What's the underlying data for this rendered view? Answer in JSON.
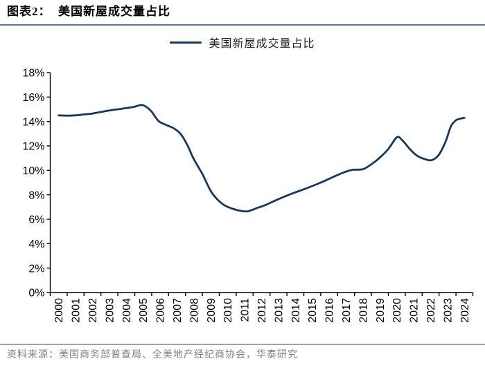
{
  "header": {
    "title": "图表2：  美国新屋成交量占比"
  },
  "legend": {
    "label": "美国新屋成交量占比"
  },
  "footer": {
    "source": "资料来源：美国商务部普查局、全美地产经纪商协会，华泰研究"
  },
  "colors": {
    "line": "#17375d",
    "axis": "#000000",
    "tick_label": "#000000",
    "title_underline": "#56799f",
    "footer_divider": "#8fa5bd",
    "footer_text": "#7f7f7f",
    "legend_text": "#262220",
    "background": "#ffffff"
  },
  "chart_data": {
    "type": "line",
    "title": "美国新屋成交量占比",
    "xlabel": "",
    "ylabel": "",
    "ylim": [
      0,
      18
    ],
    "y_ticks": [
      0,
      2,
      4,
      6,
      8,
      10,
      12,
      14,
      16,
      18
    ],
    "y_tick_labels": [
      "0%",
      "2%",
      "4%",
      "6%",
      "8%",
      "10%",
      "12%",
      "14%",
      "16%",
      "18%"
    ],
    "x_categories": [
      "2000",
      "2001",
      "2002",
      "2003",
      "2004",
      "2005",
      "2006",
      "2007",
      "2008",
      "2009",
      "2010",
      "2011",
      "2012",
      "2013",
      "2014",
      "2015",
      "2016",
      "2017",
      "2018",
      "2019",
      "2020",
      "2021",
      "2022",
      "2023",
      "2024"
    ],
    "grid": false,
    "legend_position": "top-center",
    "series": [
      {
        "name": "美国新屋成交量占比",
        "points": [
          [
            2000.0,
            14.5
          ],
          [
            2000.5,
            14.48
          ],
          [
            2001.0,
            14.5
          ],
          [
            2001.5,
            14.58
          ],
          [
            2002.0,
            14.65
          ],
          [
            2002.5,
            14.78
          ],
          [
            2003.0,
            14.9
          ],
          [
            2003.5,
            15.0
          ],
          [
            2004.0,
            15.1
          ],
          [
            2004.4,
            15.18
          ],
          [
            2004.9,
            15.35
          ],
          [
            2005.2,
            15.18
          ],
          [
            2005.5,
            14.8
          ],
          [
            2005.9,
            14.05
          ],
          [
            2006.3,
            13.75
          ],
          [
            2006.8,
            13.45
          ],
          [
            2007.2,
            13.0
          ],
          [
            2007.6,
            12.1
          ],
          [
            2008.0,
            10.9
          ],
          [
            2008.5,
            9.7
          ],
          [
            2009.0,
            8.3
          ],
          [
            2009.4,
            7.6
          ],
          [
            2009.8,
            7.15
          ],
          [
            2010.3,
            6.85
          ],
          [
            2010.8,
            6.68
          ],
          [
            2011.2,
            6.65
          ],
          [
            2011.7,
            6.9
          ],
          [
            2012.2,
            7.15
          ],
          [
            2013.0,
            7.65
          ],
          [
            2013.8,
            8.1
          ],
          [
            2014.6,
            8.5
          ],
          [
            2015.5,
            9.0
          ],
          [
            2016.3,
            9.5
          ],
          [
            2017.0,
            9.9
          ],
          [
            2017.4,
            10.05
          ],
          [
            2018.0,
            10.1
          ],
          [
            2018.5,
            10.5
          ],
          [
            2019.0,
            11.05
          ],
          [
            2019.5,
            11.75
          ],
          [
            2020.0,
            12.7
          ],
          [
            2020.3,
            12.5
          ],
          [
            2020.8,
            11.7
          ],
          [
            2021.2,
            11.2
          ],
          [
            2021.7,
            10.9
          ],
          [
            2022.1,
            10.85
          ],
          [
            2022.5,
            11.3
          ],
          [
            2022.9,
            12.4
          ],
          [
            2023.2,
            13.6
          ],
          [
            2023.5,
            14.1
          ],
          [
            2023.8,
            14.25
          ],
          [
            2024.0,
            14.3
          ]
        ]
      }
    ]
  }
}
